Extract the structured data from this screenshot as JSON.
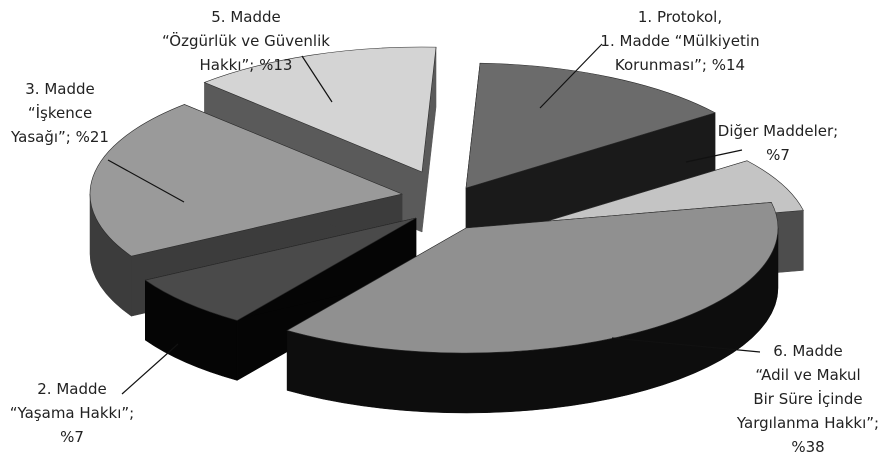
{
  "chart_data": {
    "type": "pie",
    "style": "3d-exploded",
    "title": "",
    "slices": [
      {
        "label_lines": [
          "1. Protokol,",
          "1. Madde “Mülkiyetin",
          "Korunması”; %14"
        ],
        "value": 14,
        "top_color": "#6b6b6b",
        "side_color": "#1a1a1a"
      },
      {
        "label_lines": [
          "Diğer Maddeler;",
          "%7"
        ],
        "value": 7,
        "top_color": "#c4c4c4",
        "side_color": "#4d4d4d"
      },
      {
        "label_lines": [
          "6. Madde",
          "“Adil ve Makul",
          "Bir Süre İçinde",
          "Yargılanma Hakkı”;",
          "%38"
        ],
        "value": 38,
        "top_color": "#909090",
        "side_color": "#0d0d0d"
      },
      {
        "label_lines": [
          "2. Madde",
          "“Yaşama Hakkı”;",
          "%7"
        ],
        "value": 7,
        "top_color": "#4a4a4a",
        "side_color": "#050505"
      },
      {
        "label_lines": [
          "3. Madde",
          "“İşkence",
          "Yasağı”; %21"
        ],
        "value": 21,
        "top_color": "#9a9a9a",
        "side_color": "#3c3c3c"
      },
      {
        "label_lines": [
          "5. Madde",
          "“Özgürlük ve Güvenlik",
          "Hakkı”; %13"
        ],
        "value": 13,
        "top_color": "#d4d4d4",
        "side_color": "#5a5a5a"
      }
    ]
  }
}
